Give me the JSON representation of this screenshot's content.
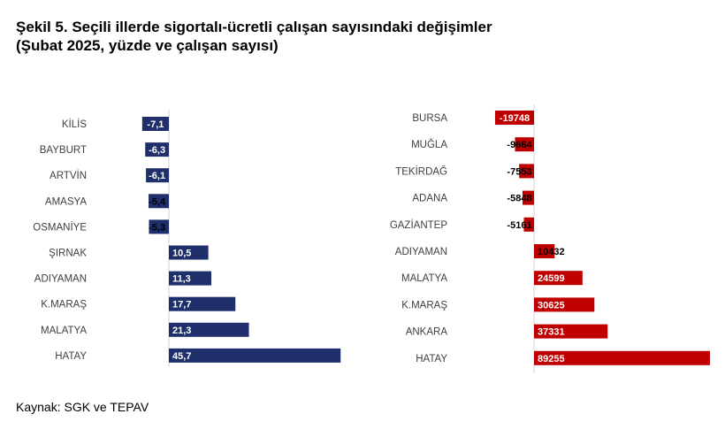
{
  "title": {
    "line1": "Şekil 5. Seçili illerde sigortalı-ücretli çalışan sayısındaki değişimler",
    "line2": "(Şubat 2025, yüzde ve çalışan sayısı)"
  },
  "source": "Kaynak: SGK ve TEPAV",
  "colors": {
    "left_bar": "#1f2f6b",
    "right_bar": "#c00000",
    "axis": "#d0d0d0"
  },
  "chart_data": [
    {
      "type": "bar",
      "orientation": "horizontal",
      "unit": "yüzde",
      "categories": [
        "KİLİS",
        "BAYBURT",
        "ARTVİN",
        "AMASYA",
        "OSMANİYE",
        "ŞIRNAK",
        "ADIYAMAN",
        "K.MARAŞ",
        "MALATYA",
        "HATAY"
      ],
      "values": [
        -7.1,
        -6.3,
        -6.1,
        -5.4,
        -5.3,
        10.5,
        11.3,
        17.7,
        21.3,
        45.7
      ],
      "labels": [
        "-7,1",
        "-6,3",
        "-6,1",
        "-5,4",
        "-5,3",
        "10,5",
        "11,3",
        "17,7",
        "21,3",
        "45,7"
      ],
      "xlim": [
        -8,
        46
      ],
      "grid": false,
      "legend": "none"
    },
    {
      "type": "bar",
      "orientation": "horizontal",
      "unit": "çalışan sayısı",
      "categories": [
        "BURSA",
        "MUĞLA",
        "TEKİRDAĞ",
        "ADANA",
        "GAZİANTEP",
        "ADIYAMAN",
        "MALATYA",
        "K.MARAŞ",
        "ANKARA",
        "HATAY"
      ],
      "values": [
        -19748,
        -9664,
        -7553,
        -5848,
        -5161,
        10432,
        24599,
        30625,
        37331,
        89255
      ],
      "labels": [
        "-19748",
        "-9664",
        "-7553",
        "-5848",
        "-5161",
        "10432",
        "24599",
        "30625",
        "37331",
        "89255"
      ],
      "xlim": [
        -20000,
        90000
      ],
      "grid": false,
      "legend": "none"
    }
  ]
}
